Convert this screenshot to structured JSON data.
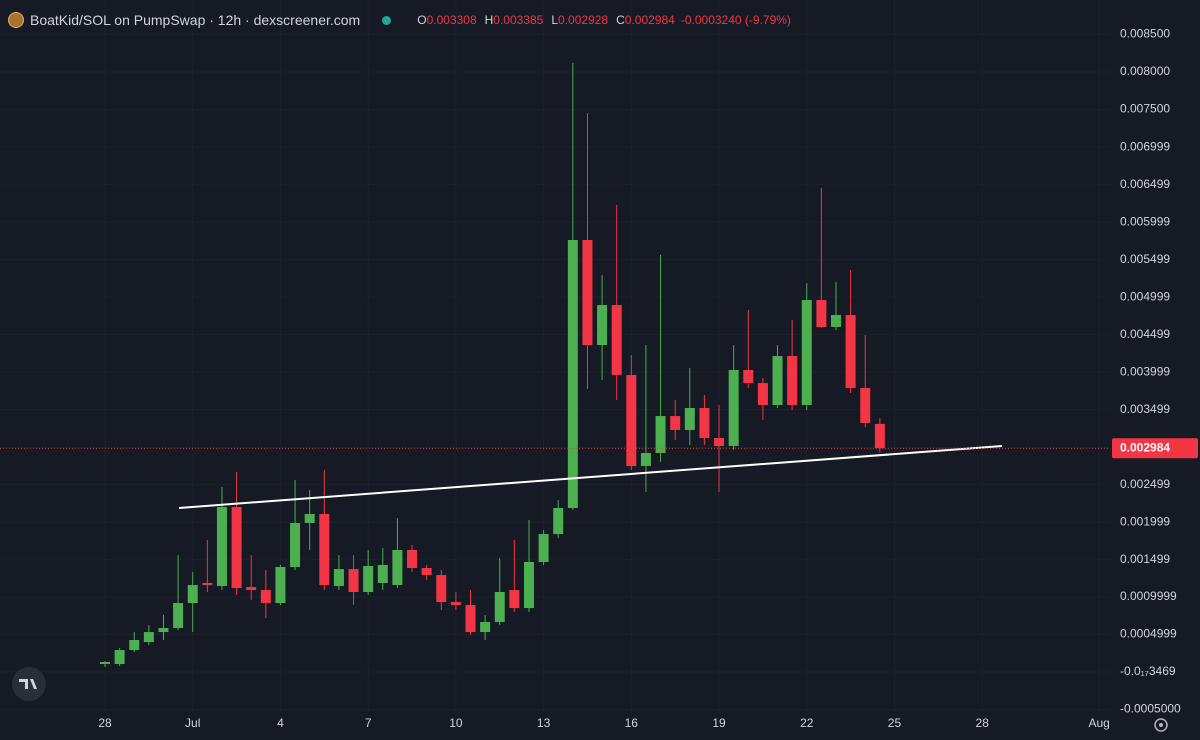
{
  "chart_data": {
    "type": "candlestick",
    "title": "BoatKid/SOL on PumpSwap · 12h · dexscreener.com",
    "ohlc": {
      "open_label": "O",
      "open": 0.003308,
      "high_label": "H",
      "high": 0.003385,
      "low_label": "L",
      "low": 0.002928,
      "close_label": "C",
      "close": 0.002984,
      "change": "-0.0003240 (-9.79%)"
    },
    "last_price": 0.002984,
    "up_color": "#4caf50",
    "down_color": "#f23645",
    "grid": true,
    "categories": [
      "28",
      null,
      null,
      null,
      null,
      null,
      "Jul",
      null,
      null,
      null,
      null,
      null,
      "4",
      null,
      null,
      null,
      null,
      null,
      "7",
      null,
      null,
      null,
      null,
      null,
      "10",
      null,
      null,
      null,
      null,
      null,
      "13",
      null,
      null,
      null,
      null,
      null,
      "16",
      null,
      null,
      null,
      null,
      null,
      "19",
      null,
      null,
      null,
      null,
      null,
      "22",
      null,
      null,
      null,
      null,
      null,
      "25",
      null,
      null,
      null,
      null,
      null,
      "28",
      null,
      null,
      null,
      null,
      null,
      null,
      null,
      "Aug"
    ],
    "open": [
      0.000107,
      0.000107,
      0.000293,
      0.0004,
      0.000533,
      0.000587,
      0.00092,
      0.001187,
      0.001147,
      0.0022,
      0.001133,
      0.001093,
      0.00092,
      0.0014,
      0.001987,
      0.002107,
      0.001147,
      0.001373,
      0.001067,
      0.001187,
      0.00116,
      0.001627,
      0.001387,
      0.001293,
      0.000933,
      0.000893,
      0.000533,
      0.000667,
      0.001093,
      0.000853,
      0.001467,
      0.00184,
      0.002187,
      0.00576,
      0.00436,
      0.004893,
      0.00396,
      0.002747,
      0.00292,
      0.003413,
      0.003227,
      0.00352,
      0.00312,
      0.003013,
      0.004027,
      0.003853,
      0.00356,
      0.004213,
      0.00356,
      0.00496,
      0.0046,
      0.00476,
      0.003787,
      0.003308,
      null,
      null,
      null,
      null,
      null,
      null,
      null,
      null,
      null,
      null,
      null,
      null,
      null,
      null,
      null
    ],
    "high": [
      0.000147,
      0.00032,
      0.000533,
      0.000627,
      0.00076,
      0.00156,
      0.001333,
      0.00176,
      0.002467,
      0.002667,
      0.00156,
      0.00136,
      0.001427,
      0.00256,
      0.002427,
      0.002693,
      0.00156,
      0.00156,
      0.001627,
      0.001653,
      0.002053,
      0.001693,
      0.001427,
      0.00136,
      0.001067,
      0.001093,
      0.00076,
      0.00152,
      0.00176,
      0.002027,
      0.001893,
      0.002293,
      0.00812,
      0.007453,
      0.005293,
      0.006227,
      0.004227,
      0.00436,
      0.00556,
      0.003627,
      0.004053,
      0.003693,
      0.00356,
      0.00436,
      0.004827,
      0.00392,
      0.00436,
      0.004693,
      0.005187,
      0.006453,
      0.0052,
      0.00536,
      0.004493,
      0.003385,
      null,
      null,
      null,
      null,
      null,
      null,
      null,
      null,
      null,
      null,
      null,
      null,
      null,
      null,
      null
    ],
    "low": [
      6.7e-05,
      8e-05,
      0.000267,
      0.00036,
      0.000427,
      0.00056,
      0.000533,
      0.001067,
      0.001093,
      0.001027,
      0.00096,
      0.00072,
      0.000893,
      0.00136,
      0.001627,
      0.001093,
      0.001093,
      0.000893,
      0.001027,
      0.001093,
      0.00112,
      0.001333,
      0.001227,
      0.000827,
      0.000827,
      0.000493,
      0.000427,
      0.000627,
      0.0008,
      0.0008,
      0.001427,
      0.001787,
      0.00216,
      0.003773,
      0.003893,
      0.003627,
      0.002693,
      0.0024,
      0.0028,
      0.003093,
      0.003027,
      0.003027,
      0.0024,
      0.00296,
      0.003787,
      0.00336,
      0.00352,
      0.003493,
      0.003493,
      0.004587,
      0.00456,
      0.00372,
      0.003267,
      0.002928,
      null,
      null,
      null,
      null,
      null,
      null,
      null,
      null,
      null,
      null,
      null,
      null,
      null,
      null,
      null
    ],
    "close": [
      0.000133,
      0.000293,
      0.000427,
      0.000533,
      0.000587,
      0.00092,
      0.00116,
      0.00116,
      0.0022,
      0.00112,
      0.001093,
      0.00092,
      0.0014,
      0.001987,
      0.002107,
      0.00116,
      0.001373,
      0.001067,
      0.001413,
      0.001427,
      0.001627,
      0.001387,
      0.001293,
      0.000933,
      0.000893,
      0.000533,
      0.000667,
      0.001067,
      0.000853,
      0.001467,
      0.00184,
      0.002187,
      0.00576,
      0.00436,
      0.004893,
      0.00396,
      0.002747,
      0.00292,
      0.003413,
      0.003227,
      0.00352,
      0.00312,
      0.003013,
      0.004027,
      0.003853,
      0.00356,
      0.004213,
      0.00356,
      0.00496,
      0.0046,
      0.00476,
      0.003787,
      0.00332,
      0.002984,
      null,
      null,
      null,
      null,
      null,
      null,
      null,
      null,
      null,
      null,
      null,
      null,
      null,
      null,
      null
    ],
    "ylim": [
      -0.000533,
      0.00896
    ],
    "yticks": [
      {
        "value": 0.0085,
        "label": "0.008500"
      },
      {
        "value": 0.008,
        "label": "0.008000"
      },
      {
        "value": 0.0075,
        "label": "0.007500"
      },
      0.006999,
      0.006499,
      0.005999,
      0.005499,
      0.004999,
      0.004499,
      0.003999,
      0.003499,
      0.002499,
      0.001999,
      0.001499,
      0.0009999,
      0.0004999,
      {
        "value": -3.469e-21,
        "label": "-0.0₁₇3469"
      },
      {
        "value": -0.0005,
        "label": "-0.0005000"
      }
    ]
  }
}
